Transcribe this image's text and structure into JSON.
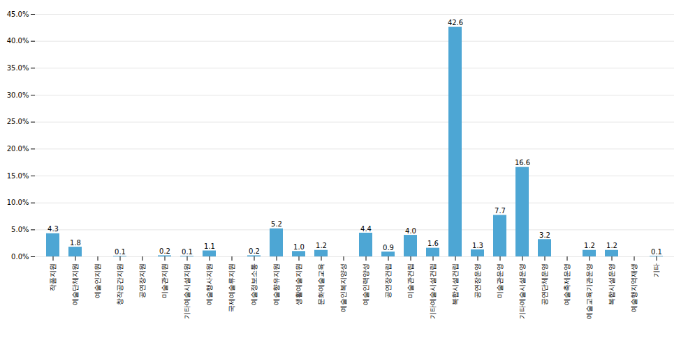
{
  "chart_data": {
    "type": "bar",
    "categories": [
      "작품지원",
      "예술단체지원",
      "예술인지원",
      "창작공간지원",
      "공연장지원",
      "미술관지원",
      "기타예술시설지원",
      "예술행사지원",
      "국제예술류지원",
      "예술정보소통",
      "예술향유지원",
      "생활예술지원",
      "문화예술교육",
      "예술인복지양성",
      "예술인력양성",
      "공연장건립",
      "미술관건립",
      "기타예술시설건립",
      "복합시설건립",
      "공연장운영",
      "미술관운영",
      "기타예술시설운영",
      "공연단체운영",
      "예술축제운영",
      "예술교육기관운영",
      "복합시설운영",
      "예술행지역재생",
      "기타"
    ],
    "values": [
      4.3,
      1.8,
      0.0,
      0.1,
      0.0,
      0.2,
      0.1,
      1.1,
      0.0,
      0.2,
      5.2,
      1.0,
      1.2,
      0.0,
      4.4,
      0.9,
      4.0,
      1.6,
      42.6,
      1.3,
      7.7,
      16.6,
      3.2,
      0.0,
      1.2,
      1.2,
      0.0,
      0.1
    ],
    "value_labels": [
      "4.3",
      "1.8",
      null,
      "0.1",
      null,
      "0.2",
      "0.1",
      "1.1",
      null,
      "0.2",
      "5.2",
      "1.0",
      "1.2",
      null,
      "4.4",
      "0.9",
      "4.0",
      "1.6",
      "42.6",
      "1.3",
      "7.7",
      "16.6",
      "3.2",
      null,
      "1.2",
      "1.2",
      null,
      "0.1"
    ],
    "data_labels": true,
    "color": "#4da6d4",
    "ylim": [
      0,
      45
    ],
    "yticks": [
      {
        "value": 0,
        "label": "0.0%"
      },
      {
        "value": 5,
        "label": "5.0%"
      },
      {
        "value": 10,
        "label": "10.0%"
      },
      {
        "value": 15,
        "label": "15.0%"
      },
      {
        "value": 20,
        "label": "20.0%"
      },
      {
        "value": 25,
        "label": "25.0%"
      },
      {
        "value": 30,
        "label": "30.0%"
      },
      {
        "value": 35,
        "label": "35.0%"
      },
      {
        "value": 40,
        "label": "40.0%"
      },
      {
        "value": 45,
        "label": "45.0%"
      }
    ],
    "grid": true
  }
}
